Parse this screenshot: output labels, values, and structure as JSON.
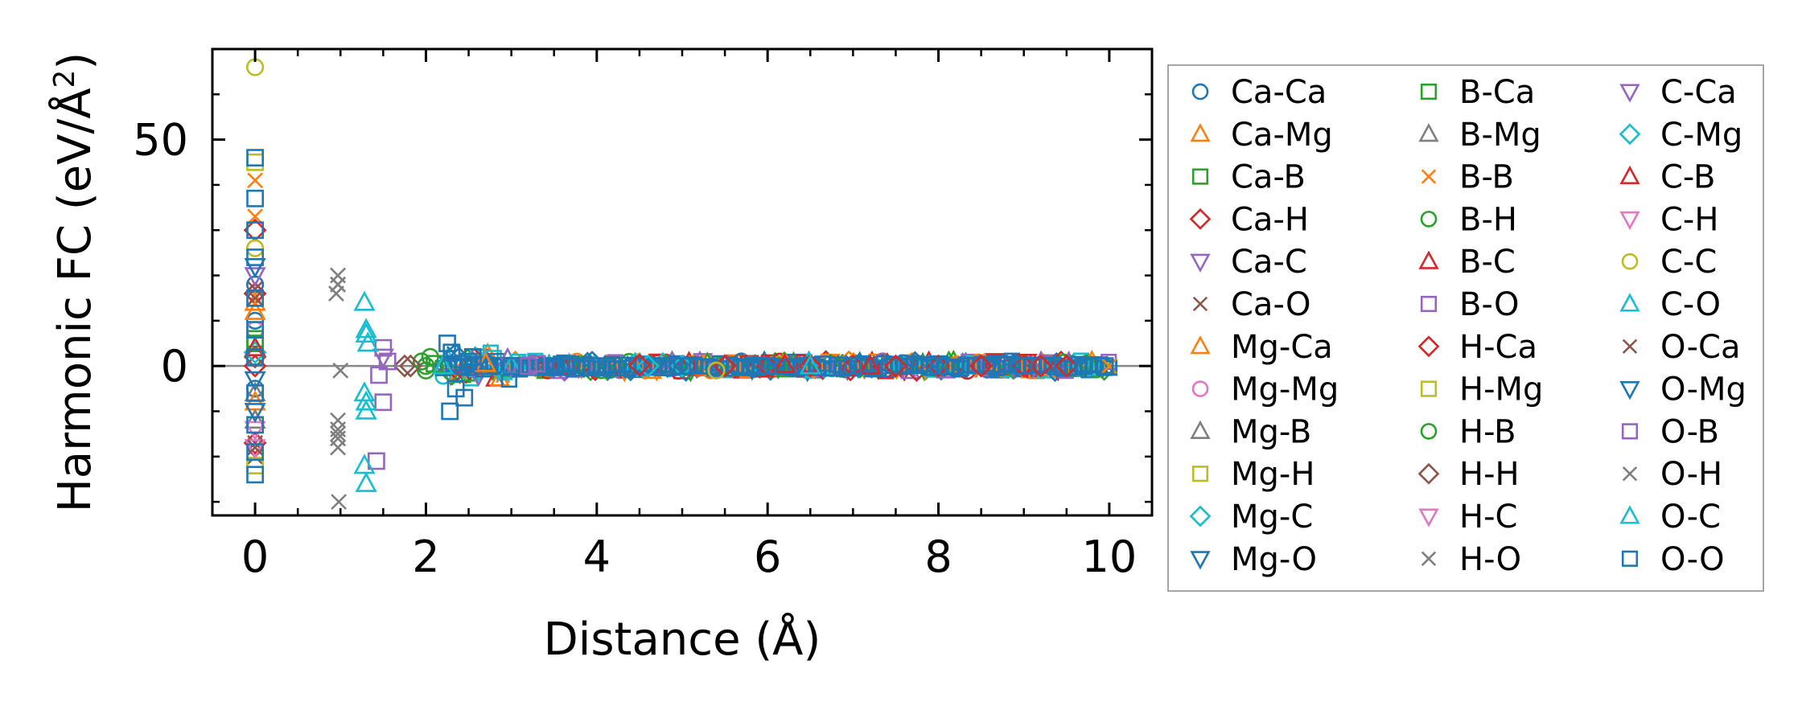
{
  "chart_data": {
    "type": "scatter",
    "title": "",
    "xlabel": "Distance (Å)",
    "ylabel_main": "Harmonic FC (eV/Å",
    "ylabel_sup": "2",
    "ylabel_close": ")",
    "xlim": [
      -0.5,
      10.5
    ],
    "ylim": [
      -33,
      70
    ],
    "xticks": [
      0,
      2,
      4,
      6,
      8,
      10
    ],
    "xtick_labels": [
      "0",
      "2",
      "4",
      "6",
      "8",
      "10"
    ],
    "yticks": [
      0,
      50
    ],
    "ytick_labels": [
      "0",
      "50"
    ],
    "hline_y": 0,
    "grid": false,
    "legend_position": "right-outside",
    "series": [
      {
        "name": "Ca-Ca",
        "marker": "circle",
        "color": "#1f77b4",
        "points": [
          [
            0,
            18
          ],
          [
            0,
            10
          ],
          [
            0,
            -5
          ]
        ]
      },
      {
        "name": "Ca-Mg",
        "marker": "triangle-up",
        "color": "#ff7f0e",
        "points": [
          [
            0,
            14
          ],
          [
            0,
            -8
          ]
        ]
      },
      {
        "name": "Ca-B",
        "marker": "square",
        "color": "#2ca02c",
        "points": [
          [
            0,
            6
          ],
          [
            2.1,
            0.5
          ]
        ]
      },
      {
        "name": "Ca-H",
        "marker": "diamond",
        "color": "#d62728",
        "points": [
          [
            0,
            16
          ],
          [
            0,
            0
          ],
          [
            0,
            -17
          ],
          [
            5.5,
            0
          ],
          [
            6.5,
            0
          ],
          [
            7.5,
            0
          ],
          [
            8.5,
            0
          ],
          [
            9.2,
            0
          ]
        ]
      },
      {
        "name": "Ca-C",
        "marker": "triangle-down",
        "color": "#9467bd",
        "points": [
          [
            0,
            20
          ],
          [
            1.5,
            2
          ]
        ]
      },
      {
        "name": "Ca-O",
        "marker": "x",
        "color": "#8c564b",
        "points": [
          [
            0,
            17
          ],
          [
            0,
            -17
          ],
          [
            0,
            -20
          ]
        ]
      },
      {
        "name": "Mg-Ca",
        "marker": "triangle-up",
        "color": "#ff7f0e",
        "points": [
          [
            0,
            12
          ],
          [
            2.7,
            0.5
          ]
        ]
      },
      {
        "name": "Mg-Mg",
        "marker": "circle",
        "color": "#e377c2",
        "points": [
          [
            0,
            8
          ]
        ]
      },
      {
        "name": "Mg-B",
        "marker": "triangle-up",
        "color": "#7f7f7f",
        "points": [
          [
            0,
            -12
          ]
        ]
      },
      {
        "name": "Mg-H",
        "marker": "square",
        "color": "#bcbd22",
        "points": [
          [
            0,
            45
          ]
        ]
      },
      {
        "name": "Mg-C",
        "marker": "diamond",
        "color": "#17becf",
        "points": [
          [
            0,
            3
          ],
          [
            4.6,
            0
          ]
        ]
      },
      {
        "name": "Mg-O",
        "marker": "triangle-down",
        "color": "#1f77b4",
        "points": [
          [
            0,
            -3
          ],
          [
            3.5,
            0
          ]
        ]
      },
      {
        "name": "B-Ca",
        "marker": "square",
        "color": "#2ca02c",
        "points": [
          [
            0,
            5
          ]
        ]
      },
      {
        "name": "B-Mg",
        "marker": "triangle-up",
        "color": "#7f7f7f",
        "points": [
          [
            0,
            -6
          ]
        ]
      },
      {
        "name": "B-B",
        "marker": "x",
        "color": "#ff7f0e",
        "points": [
          [
            0,
            41
          ],
          [
            0,
            33
          ],
          [
            10,
            0
          ]
        ]
      },
      {
        "name": "B-H",
        "marker": "circle",
        "color": "#2ca02c",
        "points": [
          [
            1.95,
            1
          ],
          [
            2.0,
            -1
          ],
          [
            2.05,
            2
          ]
        ]
      },
      {
        "name": "B-C",
        "marker": "triangle-up",
        "color": "#d62728",
        "points": [
          [
            0,
            4
          ],
          [
            6.2,
            0.3
          ]
        ]
      },
      {
        "name": "B-O",
        "marker": "square",
        "color": "#9467bd",
        "points": [
          [
            1.5,
            4
          ],
          [
            1.5,
            -8
          ],
          [
            1.42,
            -21
          ],
          [
            3.3,
            0.5
          ]
        ]
      },
      {
        "name": "H-Ca",
        "marker": "diamond",
        "color": "#d62728",
        "points": [
          [
            0,
            30
          ],
          [
            4.5,
            0.2
          ],
          [
            6.0,
            0
          ],
          [
            7.0,
            0
          ],
          [
            8.0,
            0
          ],
          [
            9.0,
            0
          ],
          [
            9.5,
            0
          ]
        ]
      },
      {
        "name": "H-Mg",
        "marker": "square",
        "color": "#bcbd22",
        "points": [
          [
            0,
            -22
          ]
        ]
      },
      {
        "name": "H-B",
        "marker": "circle",
        "color": "#2ca02c",
        "points": [
          [
            2.0,
            0
          ]
        ]
      },
      {
        "name": "H-H",
        "marker": "diamond",
        "color": "#8c564b",
        "points": [
          [
            1.75,
            0
          ],
          [
            1.82,
            0
          ],
          [
            0,
            2
          ]
        ]
      },
      {
        "name": "H-C",
        "marker": "triangle-down",
        "color": "#e377c2",
        "points": [
          [
            0,
            -14
          ]
        ]
      },
      {
        "name": "H-O",
        "marker": "x",
        "color": "#7f7f7f",
        "points": [
          [
            0.97,
            20
          ],
          [
            0.97,
            18
          ],
          [
            0.95,
            16
          ],
          [
            1.0,
            -1
          ],
          [
            0.97,
            -12
          ],
          [
            0.97,
            -14
          ],
          [
            0.97,
            -16
          ],
          [
            0.97,
            -18
          ],
          [
            0.98,
            -30
          ]
        ]
      },
      {
        "name": "C-Ca",
        "marker": "triangle-down",
        "color": "#9467bd",
        "points": [
          [
            3.0,
            0
          ]
        ]
      },
      {
        "name": "C-Mg",
        "marker": "diamond",
        "color": "#17becf",
        "points": [
          [
            5.0,
            0
          ]
        ]
      },
      {
        "name": "C-B",
        "marker": "triangle-up",
        "color": "#d62728",
        "points": [
          [
            7.2,
            0
          ]
        ]
      },
      {
        "name": "C-H",
        "marker": "triangle-down",
        "color": "#e377c2",
        "points": [
          [
            0,
            -18
          ]
        ]
      },
      {
        "name": "C-C",
        "marker": "circle",
        "color": "#bcbd22",
        "points": [
          [
            0,
            66
          ],
          [
            0,
            26
          ],
          [
            5.4,
            -1
          ]
        ]
      },
      {
        "name": "C-O",
        "marker": "triangle-up",
        "color": "#17becf",
        "points": [
          [
            1.28,
            14
          ],
          [
            1.3,
            8
          ],
          [
            1.32,
            5
          ],
          [
            1.28,
            -6
          ],
          [
            1.3,
            -10
          ],
          [
            1.28,
            -22
          ],
          [
            1.3,
            -26
          ],
          [
            3.0,
            0
          ],
          [
            6.5,
            0
          ]
        ]
      },
      {
        "name": "O-Ca",
        "marker": "x",
        "color": "#8c564b",
        "points": [
          [
            0,
            -18
          ],
          [
            0,
            15
          ]
        ]
      },
      {
        "name": "O-Mg",
        "marker": "triangle-down",
        "color": "#1f77b4",
        "points": [
          [
            0,
            22
          ],
          [
            0,
            -10
          ],
          [
            2.5,
            0
          ]
        ]
      },
      {
        "name": "O-B",
        "marker": "square",
        "color": "#9467bd",
        "points": [
          [
            1.45,
            -2
          ],
          [
            1.55,
            1
          ],
          [
            3.2,
            0
          ]
        ]
      },
      {
        "name": "O-H",
        "marker": "x",
        "color": "#7f7f7f",
        "points": [
          [
            0.97,
            18
          ],
          [
            0.97,
            -15
          ]
        ]
      },
      {
        "name": "O-C",
        "marker": "triangle-up",
        "color": "#17becf",
        "points": [
          [
            1.3,
            7
          ],
          [
            1.3,
            -8
          ],
          [
            2.2,
            0
          ]
        ]
      },
      {
        "name": "O-O",
        "marker": "square",
        "color": "#1f77b4",
        "points": [
          [
            0,
            46
          ],
          [
            0,
            37
          ],
          [
            0,
            30
          ],
          [
            0,
            24
          ],
          [
            0,
            15
          ],
          [
            0,
            8
          ],
          [
            0,
            2
          ],
          [
            0,
            -6
          ],
          [
            0,
            -13
          ],
          [
            0,
            -19
          ],
          [
            0,
            -24
          ],
          [
            2.28,
            -10
          ],
          [
            2.25,
            5
          ],
          [
            2.3,
            3
          ],
          [
            2.35,
            -5
          ],
          [
            2.45,
            -7
          ],
          [
            2.5,
            1
          ],
          [
            2.55,
            2
          ],
          [
            3.0,
            0
          ],
          [
            3.5,
            0
          ],
          [
            4.0,
            0
          ],
          [
            5.0,
            0
          ],
          [
            6.0,
            0
          ],
          [
            7.0,
            0
          ],
          [
            8.0,
            0
          ],
          [
            9.0,
            0
          ],
          [
            9.7,
            0
          ],
          [
            9.95,
            0
          ]
        ]
      }
    ],
    "dense_band": {
      "x_start": 2.2,
      "x_end": 10.0,
      "amplitude": 1.2,
      "series_colors": [
        "#1f77b4",
        "#9467bd",
        "#17becf",
        "#2ca02c",
        "#ff7f0e",
        "#d62728"
      ]
    }
  }
}
